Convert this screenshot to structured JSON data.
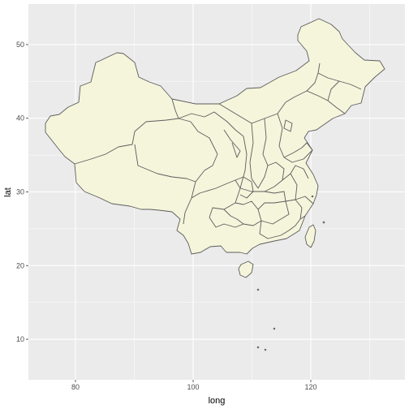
{
  "chart_data": {
    "type": "map",
    "xlabel": "long",
    "ylabel": "lat",
    "xlim": [
      72,
      136
    ],
    "ylim": [
      4.5,
      55.5
    ],
    "x_ticks": [
      80,
      100,
      120
    ],
    "y_ticks": [
      10,
      20,
      30,
      40,
      50
    ],
    "x_minor": [
      90,
      110,
      130
    ],
    "y_minor": [
      15,
      25,
      35,
      45
    ],
    "grid": true,
    "colors": {
      "panel": "#ebebeb",
      "grid": "#ffffff",
      "fill": "#f5f5dc",
      "border": "#5c5c5c"
    }
  }
}
